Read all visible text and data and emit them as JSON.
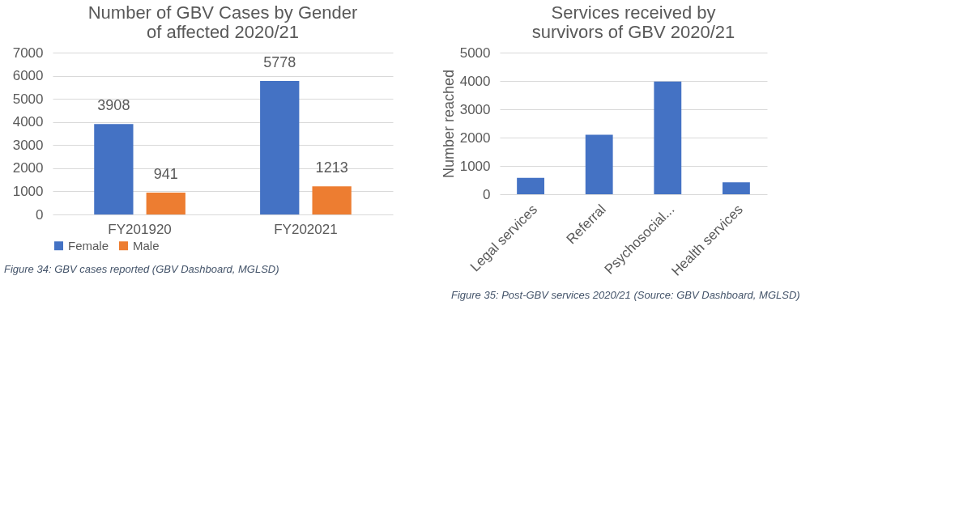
{
  "chart_data": [
    {
      "type": "bar",
      "title": [
        "Number of GBV Cases by Gender",
        "of affected 2020/21"
      ],
      "categories": [
        "FY201920",
        "FY202021"
      ],
      "series": [
        {
          "name": "Female",
          "color": "#4472c4",
          "values": [
            3908,
            5778
          ]
        },
        {
          "name": "Male",
          "color": "#ed7d31",
          "values": [
            941,
            1213
          ]
        }
      ],
      "ylim": [
        0,
        7000
      ],
      "yticks": [
        0,
        1000,
        2000,
        3000,
        4000,
        5000,
        6000,
        7000
      ],
      "grid": "y",
      "legend": "bottom",
      "data_labels": true,
      "annotations": [
        "Figure 34: GBV cases reported (GBV Dashboard, MGLSD)"
      ]
    },
    {
      "type": "bar",
      "title": [
        "Services received by",
        "survivors of GBV 2020/21"
      ],
      "ylabel": "Number reached",
      "categories": [
        "Legal services",
        "Referral",
        "Psychosocial...",
        "Health services"
      ],
      "series": [
        {
          "color": "#4472c4",
          "values": [
            580,
            2100,
            3980,
            420
          ]
        }
      ],
      "ylim": [
        0,
        5000
      ],
      "yticks": [
        0,
        1000,
        2000,
        3000,
        4000,
        5000
      ],
      "grid": "y",
      "annotations": [
        "Figure 35: Post-GBV services 2020/21 (Source: GBV Dashboard, MGLSD)"
      ]
    }
  ]
}
